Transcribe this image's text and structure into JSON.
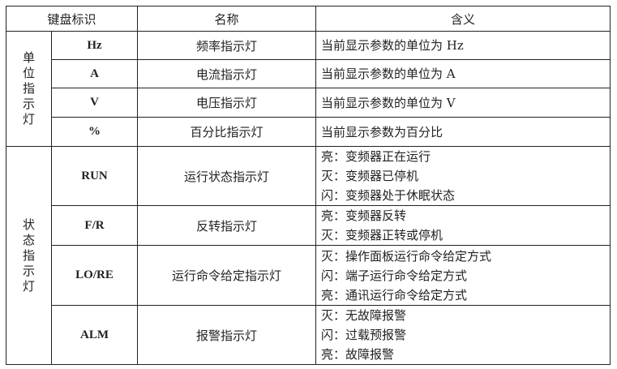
{
  "header": {
    "key": "键盘标识",
    "name": "名称",
    "meaning": "含义"
  },
  "groups": [
    {
      "label": [
        "单",
        "位",
        "指",
        "示",
        "灯"
      ],
      "rows": [
        {
          "key": "Hz",
          "name": "频率指示灯",
          "meaning": [
            "当前显示参数的单位为 Hz"
          ]
        },
        {
          "key": "A",
          "name": "电流指示灯",
          "meaning": [
            "当前显示参数的单位为 A"
          ]
        },
        {
          "key": "V",
          "name": "电压指示灯",
          "meaning": [
            "当前显示参数的单位为 V"
          ]
        },
        {
          "key": "%",
          "name": "百分比指示灯",
          "meaning": [
            "当前显示参数为百分比"
          ]
        }
      ]
    },
    {
      "label": [
        "状",
        "态",
        "指",
        "示",
        "灯"
      ],
      "rows": [
        {
          "key": "RUN",
          "name": "运行状态指示灯",
          "meaning": [
            "亮：变频器正在运行",
            "灭：变频器已停机",
            "闪：变频器处于休眠状态"
          ]
        },
        {
          "key": "F/R",
          "name": "反转指示灯",
          "meaning": [
            "亮：变频器反转",
            "灭：变频器正转或停机"
          ]
        },
        {
          "key": "LO/RE",
          "name": "运行命令给定指示灯",
          "meaning": [
            "灭：操作面板运行命令给定方式",
            "闪：端子运行命令给定方式",
            "亮：通讯运行命令给定方式"
          ]
        },
        {
          "key": "ALM",
          "name": "报警指示灯",
          "meaning": [
            "灭：无故障报警",
            "闪：过载预报警",
            "亮：故障报警"
          ]
        }
      ]
    }
  ]
}
